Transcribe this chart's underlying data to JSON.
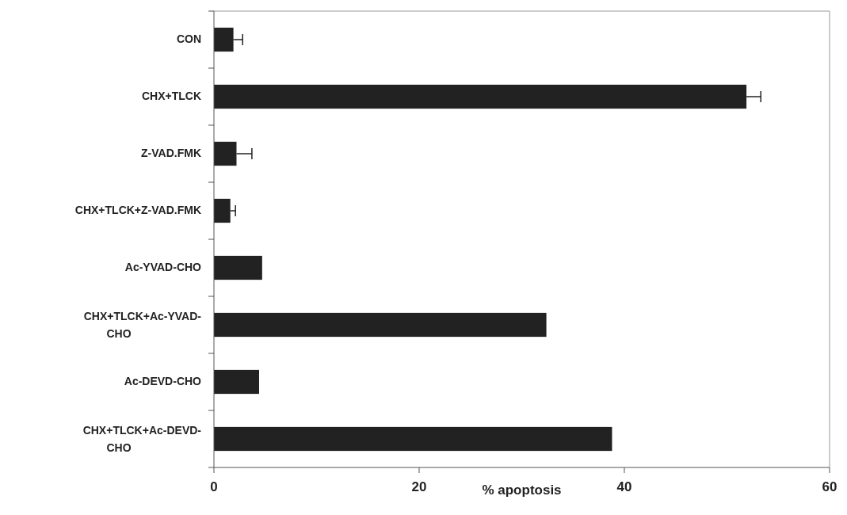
{
  "chart_data": {
    "type": "bar",
    "orientation": "horizontal",
    "xlabel": "% apoptosis",
    "categories": [
      "CON",
      "CHX+TLCK",
      "Z-VAD.FMK",
      "CHX+TLCK+Z-VAD.FMK",
      "Ac-YVAD-CHO",
      "CHX+TLCK+Ac-YVAD-CHO",
      "Ac-DEVD-CHO",
      "CHX+TLCK+Ac-DEVD-CHO"
    ],
    "values": [
      1.9,
      51.9,
      2.2,
      1.6,
      4.7,
      32.4,
      4.4,
      38.8
    ],
    "errors": [
      0.9,
      1.4,
      1.5,
      0.5,
      null,
      null,
      null,
      null
    ],
    "color": "#222222",
    "xlim": [
      0,
      60
    ],
    "xticks": [
      0,
      20,
      40,
      60
    ],
    "grid": false
  }
}
